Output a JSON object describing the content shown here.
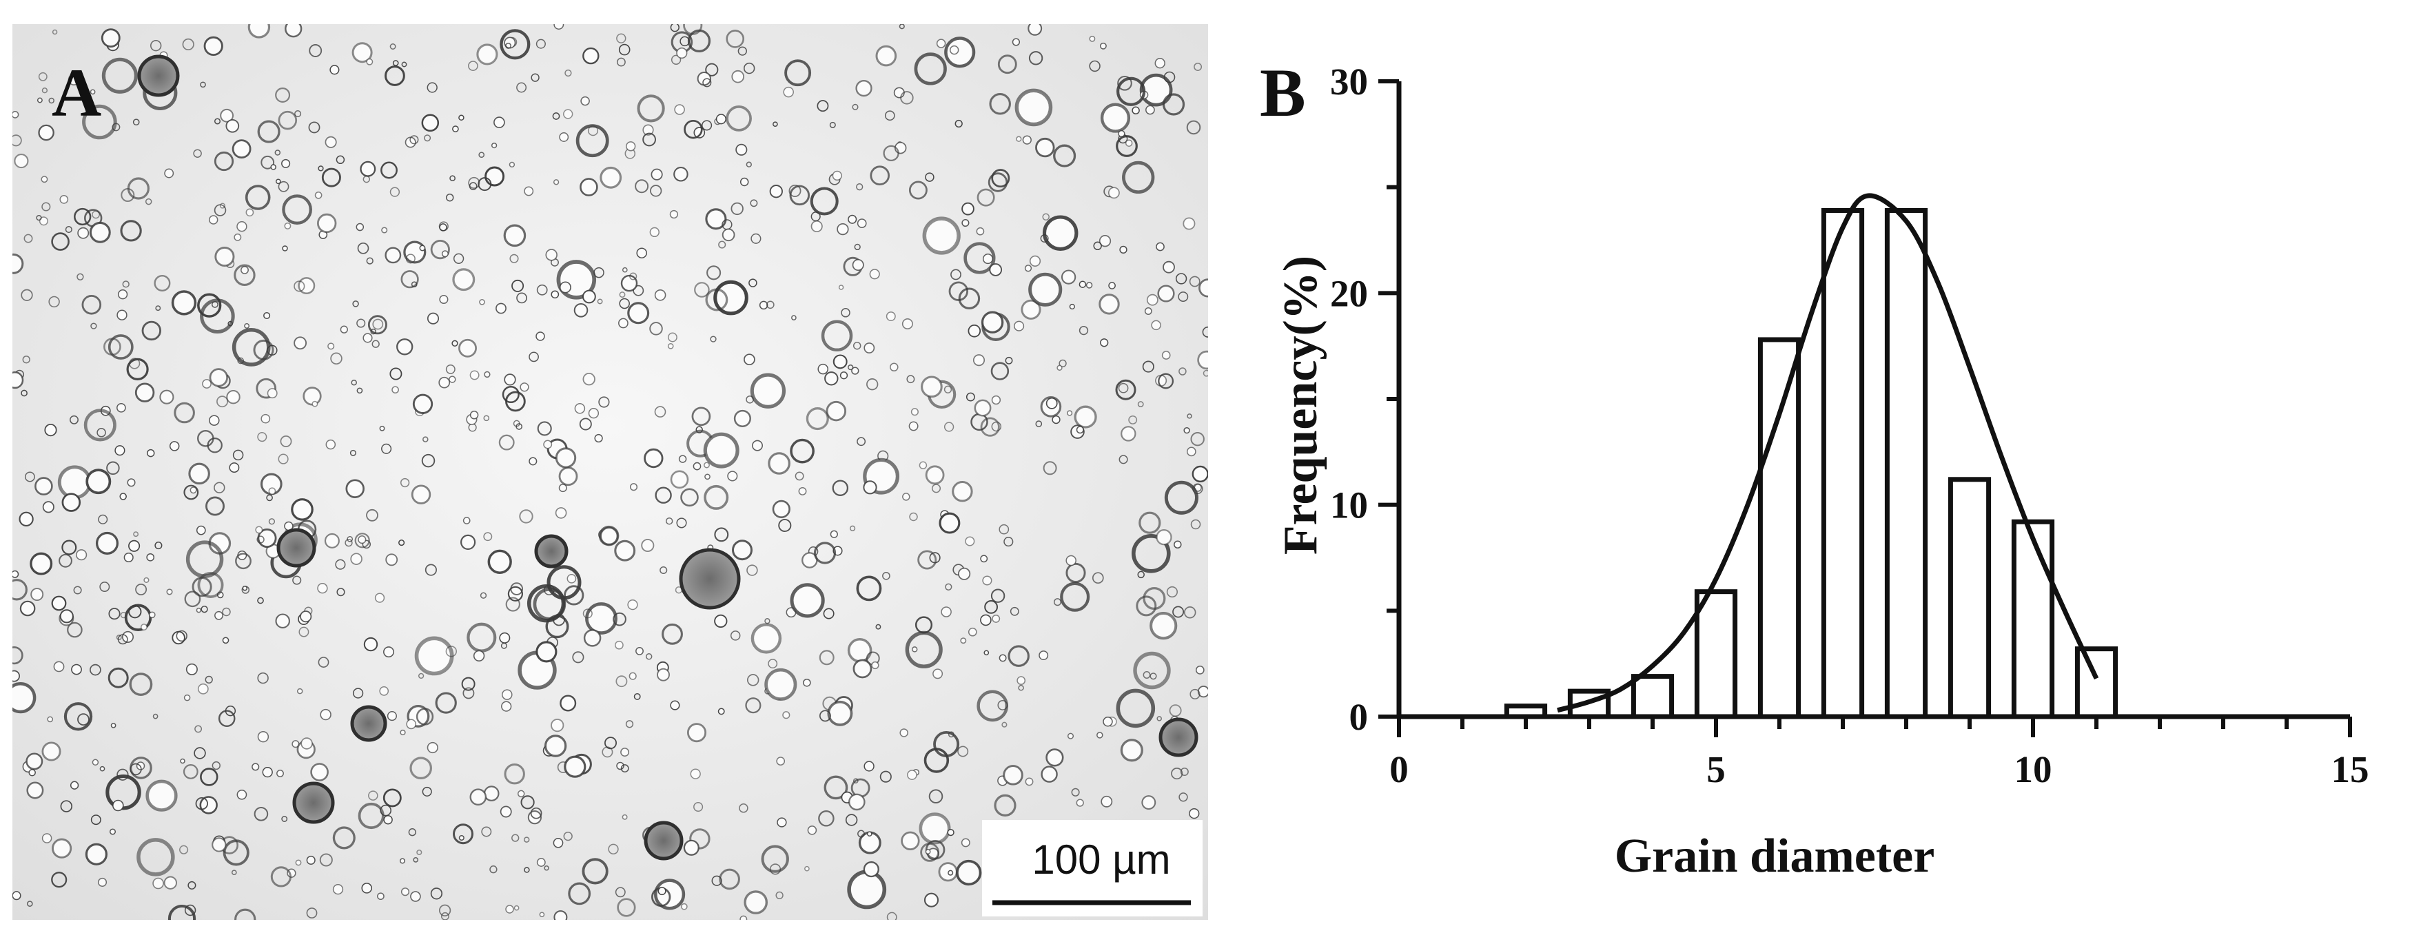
{
  "panel_a": {
    "letter": "A",
    "scale_bar_label": "100 µm"
  },
  "panel_b": {
    "letter": "B"
  },
  "chart_data": {
    "type": "bar",
    "xlabel": "Grain diameter",
    "ylabel": "Frequency(%)",
    "xlim": [
      0,
      15
    ],
    "ylim": [
      0,
      30
    ],
    "x_ticks": [
      0,
      5,
      10,
      15
    ],
    "y_ticks": [
      0,
      10,
      20,
      30
    ],
    "grid": false,
    "bar_width": 0.6,
    "series": [
      {
        "kind": "histogram",
        "x": [
          2,
          3,
          4,
          5,
          6,
          7,
          8,
          9,
          10,
          11
        ],
        "values": [
          0.5,
          1.2,
          1.9,
          5.9,
          17.8,
          23.9,
          23.9,
          11.2,
          9.2,
          3.2
        ]
      },
      {
        "kind": "fit-curve",
        "x": [
          2.5,
          3.0,
          3.5,
          4.0,
          4.5,
          5.0,
          5.5,
          6.0,
          6.5,
          7.0,
          7.4,
          8.0,
          8.5,
          9.0,
          9.5,
          10.0,
          10.5,
          11.0
        ],
        "values": [
          0.3,
          0.7,
          1.3,
          2.4,
          4.0,
          6.5,
          10.0,
          14.3,
          19.0,
          23.1,
          24.6,
          23.4,
          20.5,
          16.5,
          12.3,
          8.4,
          5.0,
          1.8
        ]
      }
    ]
  },
  "colors": {
    "ink": "#111111",
    "bar_fill": "#ffffff",
    "micrograph_background": "#ececec"
  }
}
